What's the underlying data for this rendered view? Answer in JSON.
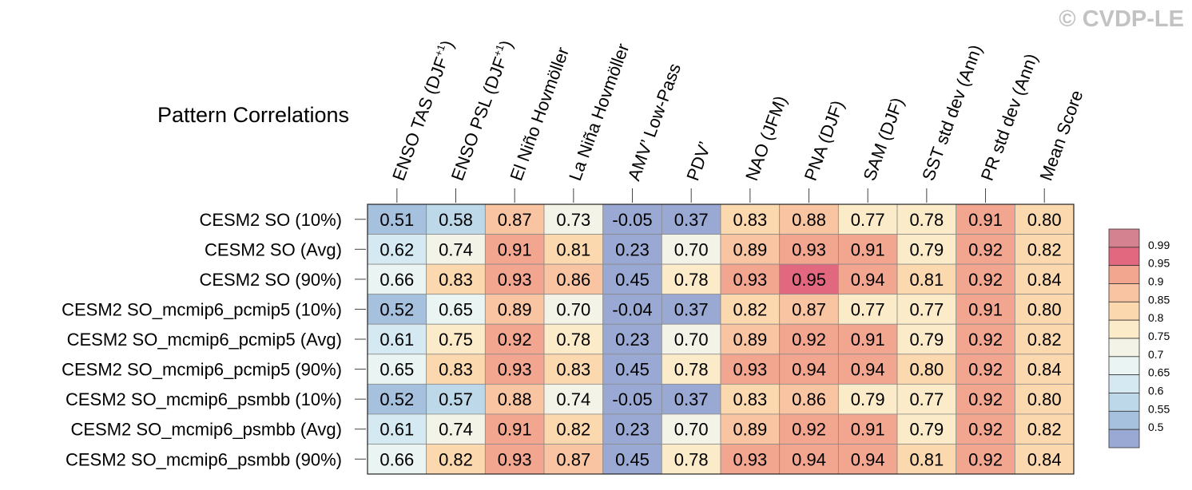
{
  "chart_data": {
    "type": "heatmap",
    "title": "Pattern Correlations",
    "watermark": "© CVDP-LE",
    "columns": [
      {
        "main": "ENSO TAS (DJF",
        "sup": "+1",
        "tail": ")"
      },
      {
        "main": "ENSO PSL (DJF",
        "sup": "+1",
        "tail": ")"
      },
      {
        "main": "El Niño Hovmöller",
        "sup": "",
        "tail": ""
      },
      {
        "main": "La Niña Hovmöller",
        "sup": "",
        "tail": ""
      },
      {
        "main": "AMV’ Low-Pass",
        "sup": "",
        "tail": ""
      },
      {
        "main": "PDV’",
        "sup": "",
        "tail": ""
      },
      {
        "main": "NAO (JFM)",
        "sup": "",
        "tail": ""
      },
      {
        "main": "PNA (DJF)",
        "sup": "",
        "tail": ""
      },
      {
        "main": "SAM (DJF)",
        "sup": "",
        "tail": ""
      },
      {
        "main": "SST std dev (Ann)",
        "sup": "",
        "tail": ""
      },
      {
        "main": "PR std dev (Ann)",
        "sup": "",
        "tail": ""
      },
      {
        "main": "Mean Score",
        "sup": "",
        "tail": ""
      }
    ],
    "rows": [
      "CESM2 SO (10%)",
      "CESM2 SO (Avg)",
      "CESM2 SO (90%)",
      "CESM2 SO_mcmip6_pcmip5 (10%)",
      "CESM2 SO_mcmip6_pcmip5 (Avg)",
      "CESM2 SO_mcmip6_pcmip5 (90%)",
      "CESM2 SO_mcmip6_psmbb (10%)",
      "CESM2 SO_mcmip6_psmbb (Avg)",
      "CESM2 SO_mcmip6_psmbb (90%)"
    ],
    "values": [
      [
        "0.51",
        "0.58",
        "0.87",
        "0.73",
        "-0.05",
        "0.37",
        "0.83",
        "0.88",
        "0.77",
        "0.78",
        "0.91",
        "0.80"
      ],
      [
        "0.62",
        "0.74",
        "0.91",
        "0.81",
        "0.23",
        "0.70",
        "0.89",
        "0.93",
        "0.91",
        "0.79",
        "0.92",
        "0.82"
      ],
      [
        "0.66",
        "0.83",
        "0.93",
        "0.86",
        "0.45",
        "0.78",
        "0.93",
        "0.95",
        "0.94",
        "0.81",
        "0.92",
        "0.84"
      ],
      [
        "0.52",
        "0.65",
        "0.89",
        "0.70",
        "-0.04",
        "0.37",
        "0.82",
        "0.87",
        "0.77",
        "0.77",
        "0.91",
        "0.80"
      ],
      [
        "0.61",
        "0.75",
        "0.92",
        "0.78",
        "0.23",
        "0.70",
        "0.89",
        "0.92",
        "0.91",
        "0.79",
        "0.92",
        "0.82"
      ],
      [
        "0.65",
        "0.83",
        "0.93",
        "0.83",
        "0.45",
        "0.78",
        "0.93",
        "0.94",
        "0.94",
        "0.80",
        "0.92",
        "0.84"
      ],
      [
        "0.52",
        "0.57",
        "0.88",
        "0.74",
        "-0.05",
        "0.37",
        "0.83",
        "0.86",
        "0.79",
        "0.77",
        "0.92",
        "0.80"
      ],
      [
        "0.61",
        "0.74",
        "0.91",
        "0.82",
        "0.23",
        "0.70",
        "0.89",
        "0.92",
        "0.91",
        "0.79",
        "0.92",
        "0.82"
      ],
      [
        "0.66",
        "0.82",
        "0.93",
        "0.87",
        "0.45",
        "0.78",
        "0.93",
        "0.94",
        "0.94",
        "0.81",
        "0.92",
        "0.84"
      ]
    ],
    "colorbar": {
      "labels": [
        "0.99",
        "0.95",
        "0.9",
        "0.85",
        "0.8",
        "0.75",
        "0.7",
        "0.65",
        "0.6",
        "0.55",
        "0.5"
      ],
      "thresholds": [
        0.5,
        0.55,
        0.6,
        0.65,
        0.7,
        0.75,
        0.8,
        0.85,
        0.9,
        0.95,
        0.99
      ],
      "colors": [
        "#9aa9d3",
        "#a5c1de",
        "#bcd8e9",
        "#d4e9f1",
        "#e9f4f3",
        "#f4f3e7",
        "#fbebc9",
        "#fbd8ae",
        "#f8c4a2",
        "#f2a58f",
        "#e2687f",
        "#d4828f"
      ]
    }
  }
}
